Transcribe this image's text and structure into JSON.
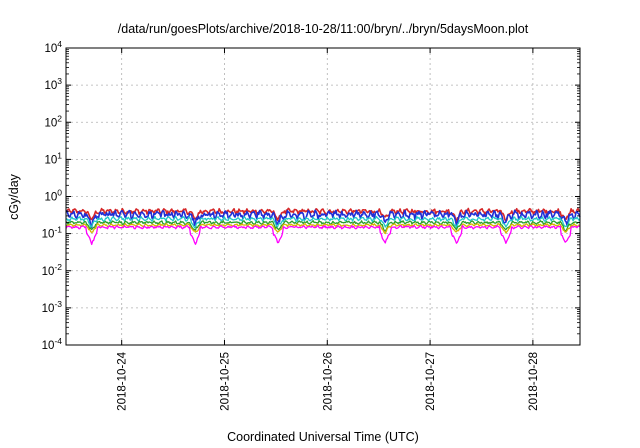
{
  "chart_data": {
    "type": "line",
    "title": "/data/run/goesPlots/archive/2018-10-28/11:00/bryn/../bryn/5daysMoon.plot",
    "xlabel": "Coordinated Universal Time (UTC)",
    "ylabel": "cGy/day",
    "y_scale": "log",
    "ylim": [
      0.0001,
      10000
    ],
    "y_ticks": [
      {
        "base": "10",
        "exp": "-4",
        "value": 0.0001
      },
      {
        "base": "10",
        "exp": "-3",
        "value": 0.001
      },
      {
        "base": "10",
        "exp": "-2",
        "value": 0.01
      },
      {
        "base": "10",
        "exp": "-1",
        "value": 0.1
      },
      {
        "base": "10",
        "exp": "0",
        "value": 1
      },
      {
        "base": "10",
        "exp": "1",
        "value": 10
      },
      {
        "base": "10",
        "exp": "2",
        "value": 100
      },
      {
        "base": "10",
        "exp": "3",
        "value": 1000
      },
      {
        "base": "10",
        "exp": "4",
        "value": 10000
      }
    ],
    "xlim": [
      "2018-10-23T11:00",
      "2018-10-28T11:00"
    ],
    "x_ticks": [
      "2018-10-24",
      "2018-10-25",
      "2018-10-26",
      "2018-10-27",
      "2018-10-28"
    ],
    "grid": true,
    "dips": [
      "2018-10-23T17:00",
      "2018-10-24T17:10",
      "2018-10-25T12:30",
      "2018-10-26T13:30",
      "2018-10-27T06:10",
      "2018-10-27T17:40",
      "2018-10-28T07:40"
    ],
    "series": [
      {
        "color": "#d62728",
        "level": 0.4,
        "spike_amp": 0.1
      },
      {
        "color": "#1f2fd6",
        "level": 0.33,
        "spike_amp": 0.12
      },
      {
        "color": "#1fc8c8",
        "level": 0.25,
        "spike_amp": 0.05
      },
      {
        "color": "#2aa02a",
        "level": 0.2,
        "spike_amp": 0.03
      },
      {
        "color": "#d6b400",
        "level": 0.17,
        "spike_amp": 0.02
      },
      {
        "color": "#ff00ff",
        "level": 0.15,
        "spike_amp": 0.02
      }
    ]
  }
}
